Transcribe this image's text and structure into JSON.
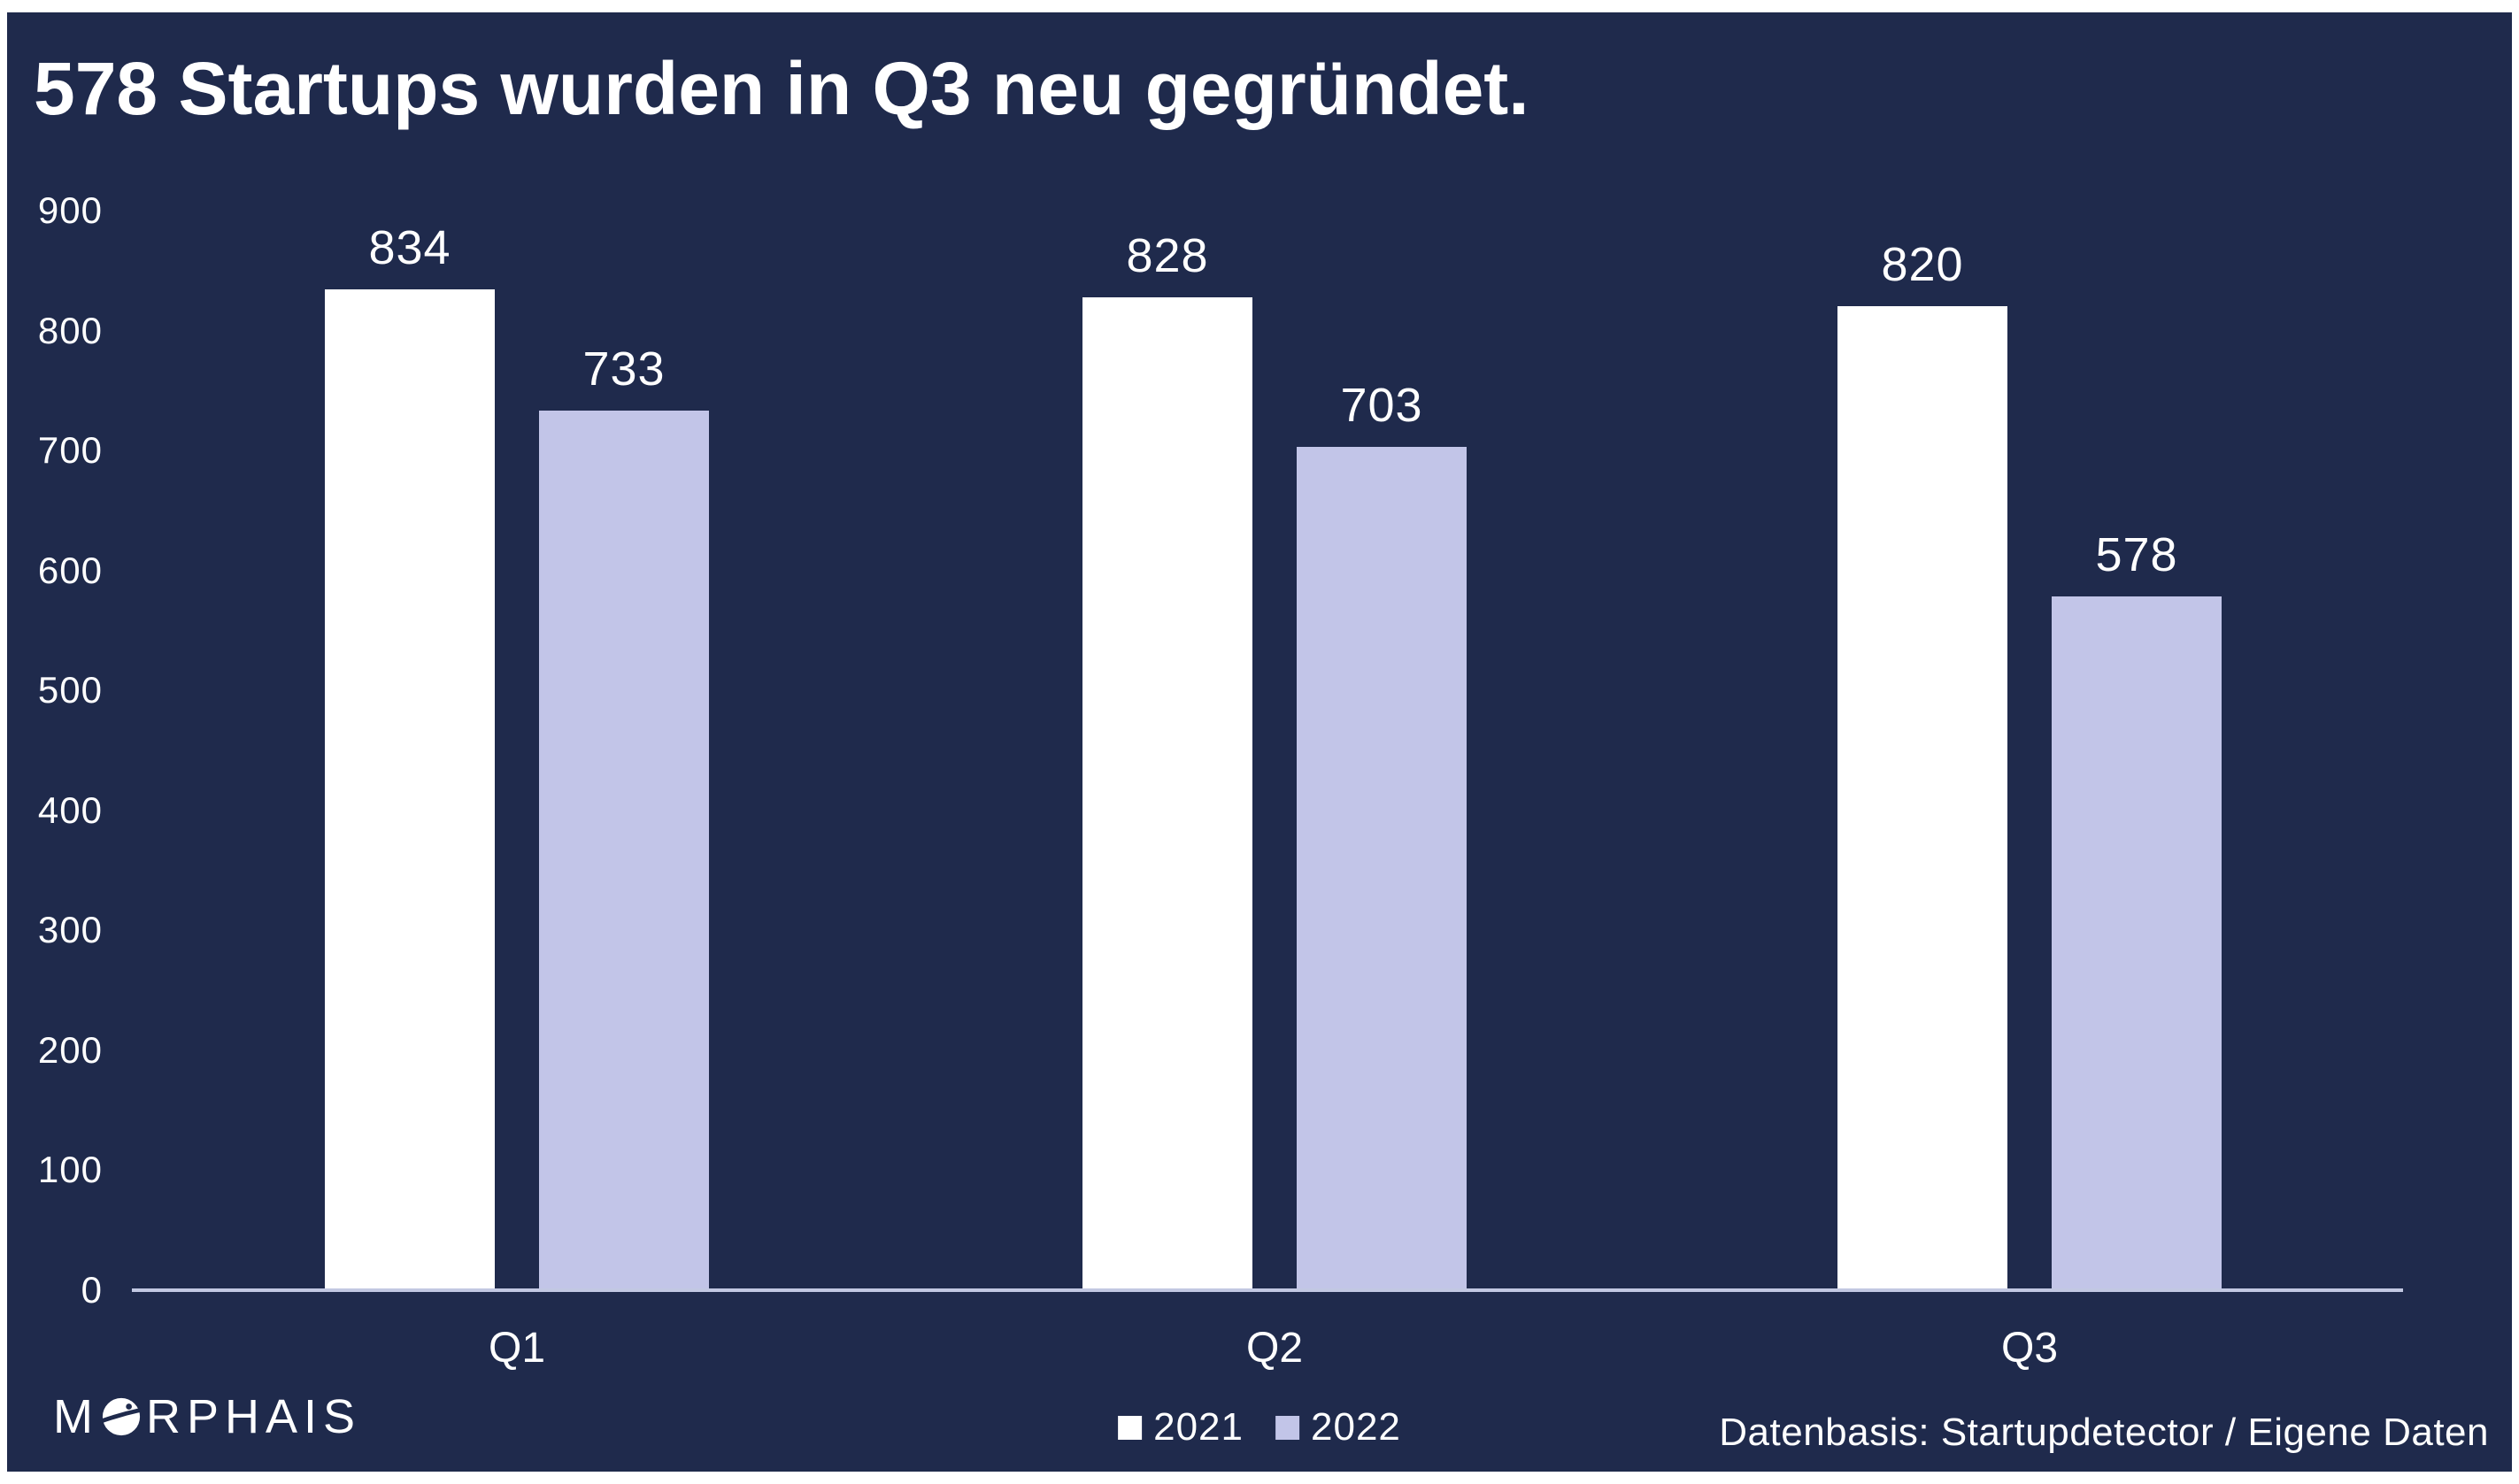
{
  "title": "578 Startups wurden in Q3 neu gegründet.",
  "footer": {
    "brand": "MORPHAIS",
    "brand_prefix": "M",
    "brand_suffix": "RPHAIS",
    "source": "Datenbasis: Startupdetector / Eigene Daten"
  },
  "colors": {
    "background": "#1f2a4c",
    "frame": "#ffffff",
    "bar_2021": "#ffffff",
    "bar_2022": "#c2c5e8",
    "axis_line": "#c2c8e2",
    "text": "#ffffff"
  },
  "chart_data": {
    "type": "bar",
    "title": "578 Startups wurden in Q3 neu gegründet.",
    "categories": [
      "Q1",
      "Q2",
      "Q3"
    ],
    "series": [
      {
        "name": "2021",
        "color": "#ffffff",
        "values": [
          834,
          828,
          820
        ]
      },
      {
        "name": "2022",
        "color": "#c2c5e8",
        "values": [
          733,
          703,
          578
        ]
      }
    ],
    "xlabel": "",
    "ylabel": "",
    "ylim": [
      0,
      900
    ],
    "yticks": [
      0,
      100,
      200,
      300,
      400,
      500,
      600,
      700,
      800,
      900
    ],
    "grid": false,
    "value_labels": true,
    "legend_position": "bottom-center",
    "source": "Datenbasis: Startupdetector / Eigene Daten"
  }
}
